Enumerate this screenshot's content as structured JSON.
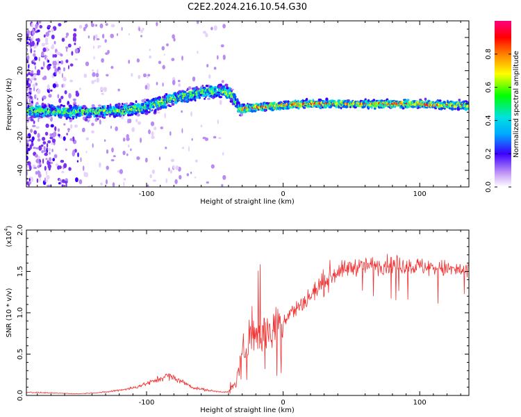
{
  "title": "C2E2.2024.216.10.54.G30",
  "chart_data": [
    {
      "type": "heatmap",
      "xlabel": "Height of straight line (km)",
      "ylabel": "Frequency (Hz)",
      "xlim": [
        -188,
        136
      ],
      "ylim": [
        -50,
        50
      ],
      "xticks": [
        -100,
        0,
        100
      ],
      "yticks": [
        -40,
        -20,
        0,
        20,
        40
      ],
      "colorbar": {
        "label": "Normalized spectral amplitude",
        "range": [
          0,
          1
        ],
        "ticks": [
          "0.0",
          "0.2",
          "0.4",
          "0.6",
          "0.8"
        ]
      },
      "trend": [
        [
          -188,
          -4
        ],
        [
          -150,
          -5
        ],
        [
          -120,
          -4
        ],
        [
          -100,
          -2
        ],
        [
          -80,
          3
        ],
        [
          -60,
          7
        ],
        [
          -45,
          8
        ],
        [
          -38,
          6
        ],
        [
          -32,
          -3
        ],
        [
          -20,
          -2
        ],
        [
          0,
          -1
        ],
        [
          20,
          0
        ],
        [
          60,
          0
        ],
        [
          100,
          0
        ],
        [
          136,
          -1
        ]
      ]
    },
    {
      "type": "line",
      "xlabel": "Height of straight line (km)",
      "ylabel": "SNR (10 * v/v)",
      "yscale_label": "(x10",
      "yscale_exp": "4",
      "yscale_close": ")",
      "xlim": [
        -188,
        136
      ],
      "ylim": [
        0,
        2.0
      ],
      "xticks": [
        -100,
        0,
        100
      ],
      "yticks": [
        "0.0",
        "0.5",
        "1.0",
        "1.5",
        "2.0"
      ],
      "line_color": "#f03030",
      "envelope": [
        [
          -188,
          0.04
        ],
        [
          -170,
          0.03
        ],
        [
          -150,
          0.02
        ],
        [
          -130,
          0.04
        ],
        [
          -110,
          0.09
        ],
        [
          -95,
          0.17
        ],
        [
          -85,
          0.24
        ],
        [
          -78,
          0.2
        ],
        [
          -65,
          0.09
        ],
        [
          -50,
          0.05
        ],
        [
          -40,
          0.04
        ],
        [
          -35,
          0.15
        ],
        [
          -30,
          0.5
        ],
        [
          -25,
          0.7
        ],
        [
          -22,
          0.9
        ],
        [
          -18,
          0.7
        ],
        [
          -12,
          0.8
        ],
        [
          -5,
          0.85
        ],
        [
          0,
          0.9
        ],
        [
          5,
          1.0
        ],
        [
          10,
          1.05
        ],
        [
          20,
          1.2
        ],
        [
          30,
          1.38
        ],
        [
          40,
          1.5
        ],
        [
          50,
          1.55
        ],
        [
          60,
          1.57
        ],
        [
          80,
          1.58
        ],
        [
          100,
          1.56
        ],
        [
          120,
          1.53
        ],
        [
          136,
          1.5
        ]
      ]
    }
  ]
}
